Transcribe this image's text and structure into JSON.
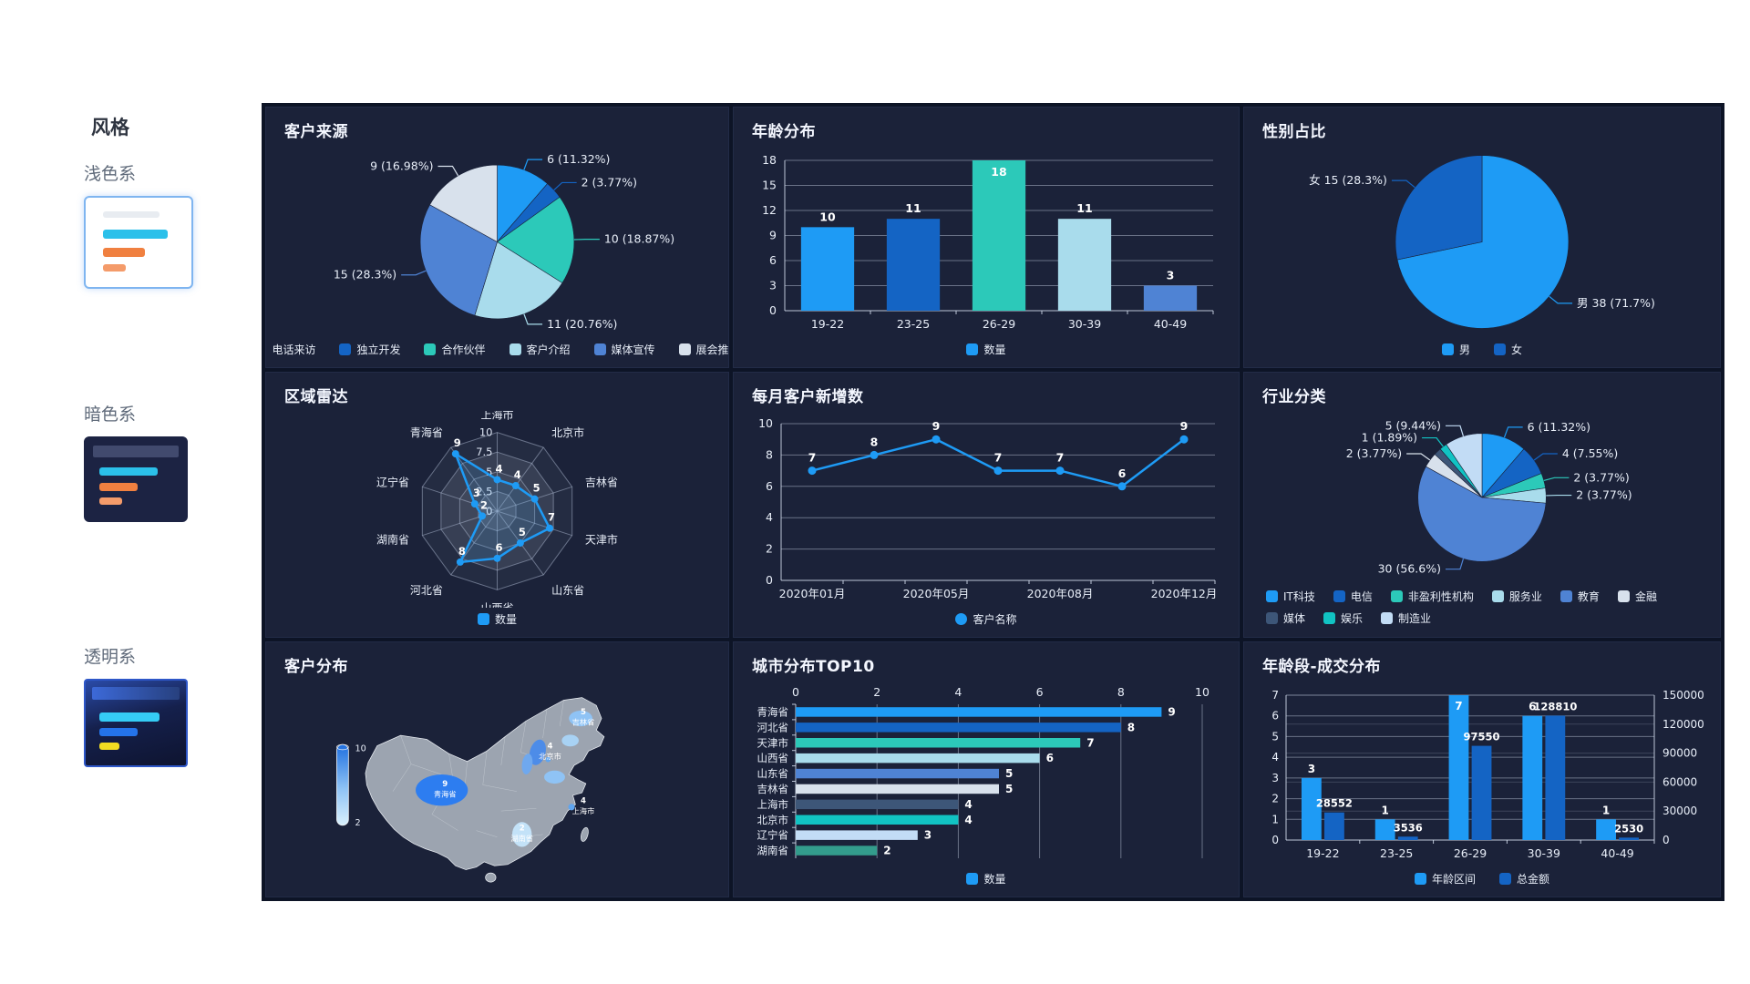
{
  "sidebar": {
    "title": "风格",
    "options": [
      {
        "label": "浅色系",
        "selected": true
      },
      {
        "label": "暗色系",
        "selected": false
      },
      {
        "label": "透明系",
        "selected": false
      }
    ]
  },
  "theme": {
    "accent": "#1e9bf5",
    "dark_blue": "#1464c4",
    "panel_bg": "#1b2239",
    "dashboard_bg": "#0d1426",
    "text": "#e8eef8"
  },
  "chart_data": [
    {
      "type": "pie",
      "title": "客户来源",
      "slices": [
        {
          "name": "电话来访",
          "value": 6,
          "label": "6 (11.32%)",
          "color": "#1e9bf5"
        },
        {
          "name": "独立开发",
          "value": 2,
          "label": "2 (3.77%)",
          "color": "#1464c4"
        },
        {
          "name": "合作伙伴",
          "value": 10,
          "label": "10 (18.87%)",
          "color": "#2cc9b9"
        },
        {
          "name": "客户介绍",
          "value": 11,
          "label": "11 (20.76%)",
          "color": "#a9dcec"
        },
        {
          "name": "媒体宣传",
          "value": 15,
          "label": "15 (28.3%)",
          "color": "#4f83d4"
        },
        {
          "name": "展会推广",
          "value": 9,
          "label": "9 (16.98%)",
          "color": "#d8e1ec"
        }
      ]
    },
    {
      "type": "bar",
      "title": "年龄分布",
      "categories": [
        "19-22",
        "23-25",
        "26-29",
        "30-39",
        "40-49"
      ],
      "values": [
        10,
        11,
        18,
        11,
        3
      ],
      "bar_colors": [
        "#1e9bf5",
        "#1464c4",
        "#2cc9b9",
        "#a9dcec",
        "#4f83d4"
      ],
      "yticks": [
        0,
        3,
        6,
        9,
        12,
        15,
        18
      ],
      "ymax": 18,
      "legend": [
        {
          "name": "数量",
          "color": "#1e9bf5"
        }
      ]
    },
    {
      "type": "pie",
      "title": "性别占比",
      "r_scale": 0.45,
      "slices": [
        {
          "name": "男",
          "value": 38,
          "label": "男 38 (71.7%)",
          "color": "#1e9bf5"
        },
        {
          "name": "女",
          "value": 15,
          "label": "女 15 (28.3%)",
          "color": "#1464c4"
        }
      ]
    },
    {
      "type": "radar",
      "title": "区域雷达",
      "indicators": [
        "上海市",
        "北京市",
        "吉林省",
        "天津市",
        "山东省",
        "山西省",
        "河北省",
        "湖南省",
        "辽宁省",
        "青海省"
      ],
      "values": [
        4,
        4,
        5,
        7,
        5,
        6,
        8,
        2,
        3,
        9
      ],
      "max": 10,
      "ticks": [
        0,
        2.5,
        5,
        7.5,
        10
      ],
      "color": "#1e9bf5",
      "legend": [
        {
          "name": "数量",
          "color": "#1e9bf5"
        }
      ]
    },
    {
      "type": "line",
      "title": "每月客户新增数",
      "x_labels": [
        "2020年01月",
        "",
        "2020年05月",
        "",
        "2020年08月",
        "",
        "2020年12月"
      ],
      "values": [
        7,
        8,
        9,
        7,
        7,
        6,
        9
      ],
      "yticks": [
        0,
        2,
        4,
        6,
        8,
        10
      ],
      "ymax": 10,
      "color": "#1e9bf5",
      "legend": [
        {
          "name": "客户名称",
          "color": "#1e9bf5",
          "shape": "circle"
        }
      ]
    },
    {
      "type": "pie",
      "title": "行业分类",
      "r_scale": 0.37,
      "legend_wrap": true,
      "slices": [
        {
          "name": "IT科技",
          "value": 6,
          "label": "6 (11.32%)",
          "color": "#1e9bf5"
        },
        {
          "name": "电信",
          "value": 4,
          "label": "4 (7.55%)",
          "color": "#1464c4"
        },
        {
          "name": "非盈利性机构",
          "value": 2,
          "label": "2 (3.77%)",
          "color": "#2cc9b9"
        },
        {
          "name": "服务业",
          "value": 2,
          "label": "2 (3.77%)",
          "color": "#a9dcec"
        },
        {
          "name": "教育",
          "value": 30,
          "label": "30 (56.6%)",
          "color": "#4f83d4"
        },
        {
          "name": "金融",
          "value": 2,
          "label": "2 (3.77%)",
          "color": "#d8e1ec"
        },
        {
          "name": "媒体",
          "value": 1,
          "label": "",
          "color": "#3d5678"
        },
        {
          "name": "娱乐",
          "value": 1,
          "label": "1 (1.89%)",
          "color": "#11c3c3"
        },
        {
          "name": "制造业",
          "value": 5,
          "label": "5 (9.44%)",
          "color": "#c2dcf5"
        }
      ]
    },
    {
      "type": "map",
      "title": "客户分布",
      "visual_max": 10,
      "visual_min": 2,
      "regions": [
        {
          "name": "青海省",
          "value": 9
        },
        {
          "name": "吉林省",
          "value": 5
        },
        {
          "name": "北京市",
          "value": 4
        },
        {
          "name": "上海市",
          "value": 4
        },
        {
          "name": "湖南省",
          "value": 2
        }
      ]
    },
    {
      "type": "hbar",
      "title": "城市分布TOP10",
      "categories": [
        "青海省",
        "河北省",
        "天津市",
        "山西省",
        "山东省",
        "吉林省",
        "上海市",
        "北京市",
        "辽宁省",
        "湖南省"
      ],
      "values": [
        9,
        8,
        7,
        6,
        5,
        5,
        4,
        4,
        3,
        2
      ],
      "bar_colors": [
        "#1e9bf5",
        "#1464c4",
        "#2cc9b9",
        "#a9dcec",
        "#4f83d4",
        "#d8e1ec",
        "#3d5678",
        "#11c3c3",
        "#c2dcf5",
        "#339c8c"
      ],
      "xticks": [
        0,
        2,
        4,
        6,
        8,
        10
      ],
      "xmax": 10,
      "legend": [
        {
          "name": "数量",
          "color": "#1e9bf5"
        }
      ]
    },
    {
      "type": "dualbar",
      "title": "年龄段-成交分布",
      "categories": [
        "19-22",
        "23-25",
        "26-29",
        "30-39",
        "40-49"
      ],
      "series": [
        {
          "name": "年龄区间",
          "color": "#1e9bf5",
          "values": [
            3,
            1,
            7,
            6,
            1
          ]
        },
        {
          "name": "总金额",
          "color": "#1464c4",
          "values": [
            28552,
            3536,
            97550,
            128810,
            2530
          ]
        }
      ],
      "left_ticks": [
        0,
        1,
        2,
        3,
        4,
        5,
        6,
        7
      ],
      "left_max": 7,
      "right_ticks": [
        0,
        30000,
        60000,
        90000,
        120000,
        150000
      ],
      "right_max": 150000,
      "legend": [
        {
          "name": "年龄区间",
          "color": "#1e9bf5"
        },
        {
          "name": "总金额",
          "color": "#1464c4"
        }
      ]
    }
  ]
}
